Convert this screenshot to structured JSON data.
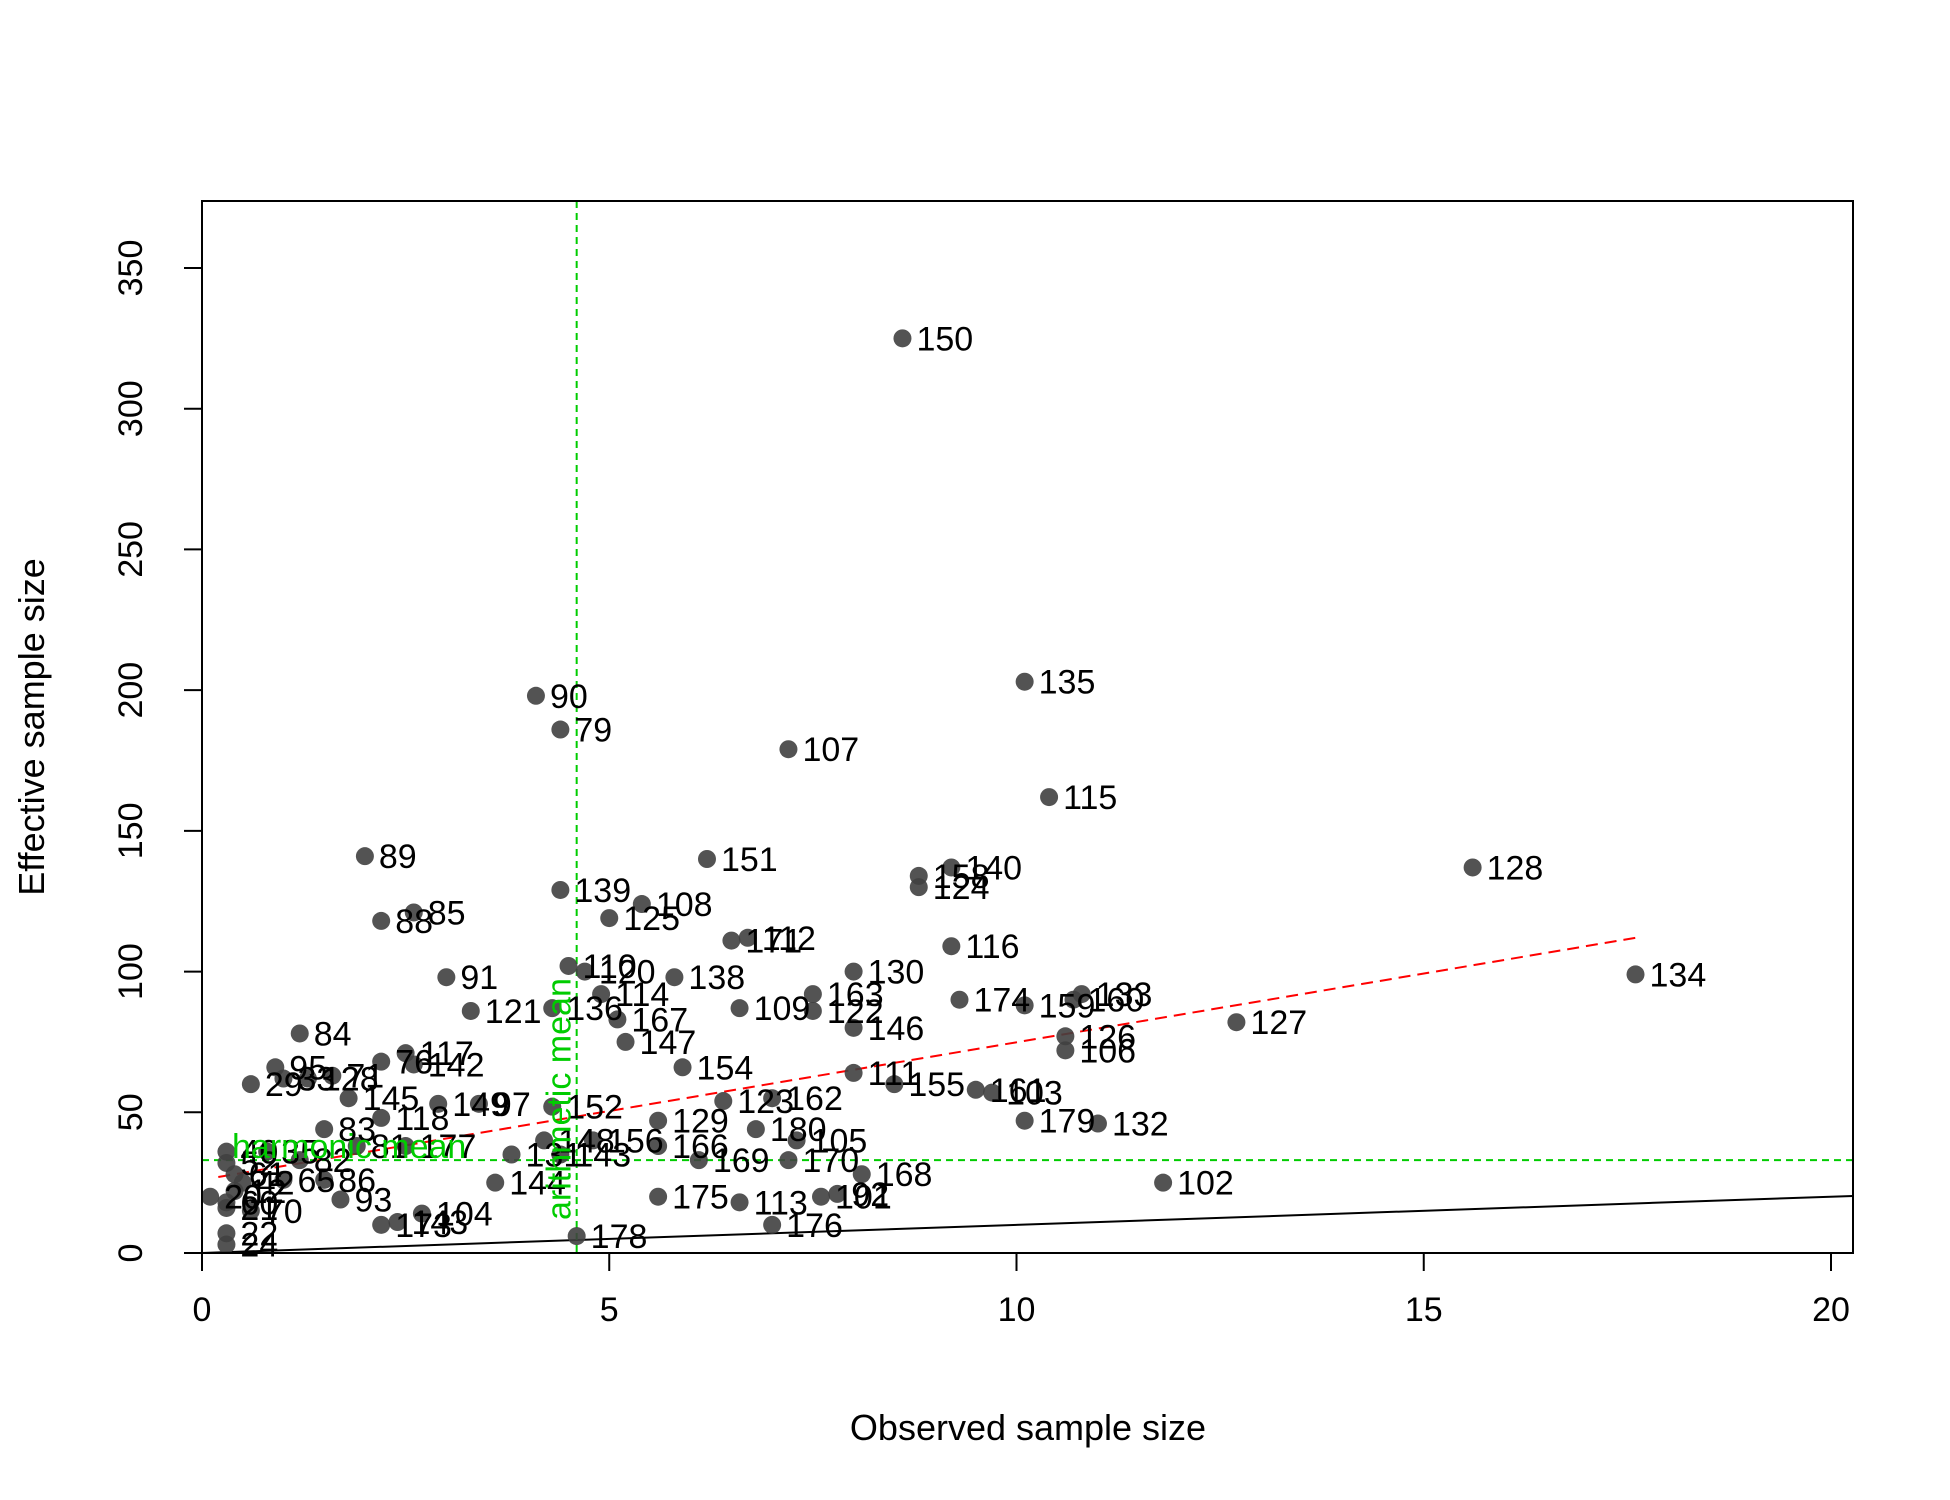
{
  "chart_data": {
    "type": "scatter",
    "title": "",
    "xlabel": "Observed sample size",
    "ylabel": "Effective sample size",
    "xlim": [
      0,
      20.3
    ],
    "ylim": [
      0,
      370
    ],
    "x_ticks": [
      "0",
      "5",
      "10",
      "15",
      "20"
    ],
    "x_tick_values": [
      0,
      5,
      10,
      15,
      20
    ],
    "y_ticks": [
      "0",
      "50",
      "100",
      "150",
      "200",
      "250",
      "300",
      "350"
    ],
    "y_tick_values": [
      0,
      50,
      100,
      150,
      200,
      250,
      300,
      350
    ],
    "grid": false,
    "point_color": "#404040",
    "reference_lines": {
      "identity": {
        "slope": 1,
        "color": "#000000"
      },
      "trend": {
        "x": [
          0.2,
          17.6
        ],
        "y": [
          27,
          112
        ],
        "color": "#ff0000"
      },
      "harmonic_mean": {
        "y": 33,
        "label": "harmonic mean",
        "color": "#00cc00"
      },
      "arithmetic_mean": {
        "x": 4.6,
        "label": "arithmetic mean",
        "color": "#00cc00"
      }
    },
    "points": [
      {
        "id": "150",
        "x": 8.6,
        "y": 325
      },
      {
        "id": "135",
        "x": 10.1,
        "y": 203
      },
      {
        "id": "90",
        "x": 4.1,
        "y": 198
      },
      {
        "id": "79",
        "x": 4.4,
        "y": 186
      },
      {
        "id": "107",
        "x": 7.2,
        "y": 179
      },
      {
        "id": "115",
        "x": 10.4,
        "y": 162
      },
      {
        "id": "89",
        "x": 2.0,
        "y": 141
      },
      {
        "id": "151",
        "x": 6.2,
        "y": 140
      },
      {
        "id": "128",
        "x": 15.6,
        "y": 137
      },
      {
        "id": "140",
        "x": 9.2,
        "y": 137
      },
      {
        "id": "158",
        "x": 8.8,
        "y": 134
      },
      {
        "id": "124",
        "x": 8.8,
        "y": 130
      },
      {
        "id": "139",
        "x": 4.4,
        "y": 129
      },
      {
        "id": "108",
        "x": 5.4,
        "y": 124
      },
      {
        "id": "85",
        "x": 2.6,
        "y": 121
      },
      {
        "id": "125",
        "x": 5.0,
        "y": 119
      },
      {
        "id": "88",
        "x": 2.2,
        "y": 118
      },
      {
        "id": "112",
        "x": 6.7,
        "y": 112
      },
      {
        "id": "171",
        "x": 6.5,
        "y": 111
      },
      {
        "id": "116",
        "x": 9.2,
        "y": 109
      },
      {
        "id": "110",
        "x": 4.5,
        "y": 102
      },
      {
        "id": "120",
        "x": 4.7,
        "y": 100
      },
      {
        "id": "130",
        "x": 8.0,
        "y": 100
      },
      {
        "id": "134",
        "x": 17.6,
        "y": 99
      },
      {
        "id": "138",
        "x": 5.8,
        "y": 98
      },
      {
        "id": "91",
        "x": 3.0,
        "y": 98
      },
      {
        "id": "114",
        "x": 4.9,
        "y": 92
      },
      {
        "id": "163",
        "x": 7.5,
        "y": 92
      },
      {
        "id": "133",
        "x": 10.8,
        "y": 92
      },
      {
        "id": "160",
        "x": 10.7,
        "y": 90
      },
      {
        "id": "174",
        "x": 9.3,
        "y": 90
      },
      {
        "id": "159",
        "x": 10.1,
        "y": 88
      },
      {
        "id": "136",
        "x": 4.3,
        "y": 87
      },
      {
        "id": "109",
        "x": 6.6,
        "y": 87
      },
      {
        "id": "121",
        "x": 3.3,
        "y": 86
      },
      {
        "id": "122",
        "x": 7.5,
        "y": 86
      },
      {
        "id": "167",
        "x": 5.1,
        "y": 83
      },
      {
        "id": "127",
        "x": 12.7,
        "y": 82
      },
      {
        "id": "146",
        "x": 8.0,
        "y": 80
      },
      {
        "id": "84",
        "x": 1.2,
        "y": 78
      },
      {
        "id": "126",
        "x": 10.6,
        "y": 77
      },
      {
        "id": "147",
        "x": 5.2,
        "y": 75
      },
      {
        "id": "106",
        "x": 10.6,
        "y": 72
      },
      {
        "id": "117",
        "x": 2.5,
        "y": 71
      },
      {
        "id": "76",
        "x": 2.2,
        "y": 68
      },
      {
        "id": "142",
        "x": 2.6,
        "y": 67
      },
      {
        "id": "154",
        "x": 5.9,
        "y": 66
      },
      {
        "id": "95",
        "x": 0.9,
        "y": 66
      },
      {
        "id": "111",
        "x": 8.0,
        "y": 64
      },
      {
        "id": "71",
        "x": 1.6,
        "y": 63
      },
      {
        "id": "33",
        "x": 1.0,
        "y": 62
      },
      {
        "id": "128b",
        "x": 1.3,
        "y": 62
      },
      {
        "id": "155",
        "x": 8.5,
        "y": 60
      },
      {
        "id": "29",
        "x": 0.6,
        "y": 60
      },
      {
        "id": "161",
        "x": 9.5,
        "y": 58
      },
      {
        "id": "103",
        "x": 9.7,
        "y": 57
      },
      {
        "id": "145",
        "x": 1.8,
        "y": 55
      },
      {
        "id": "162",
        "x": 7.0,
        "y": 55
      },
      {
        "id": "123",
        "x": 6.4,
        "y": 54
      },
      {
        "id": "149",
        "x": 2.9,
        "y": 53
      },
      {
        "id": "97",
        "x": 3.4,
        "y": 53
      },
      {
        "id": "152",
        "x": 4.3,
        "y": 52
      },
      {
        "id": "118",
        "x": 2.2,
        "y": 48
      },
      {
        "id": "179",
        "x": 10.1,
        "y": 47
      },
      {
        "id": "132",
        "x": 11.0,
        "y": 46
      },
      {
        "id": "129",
        "x": 5.6,
        "y": 47
      },
      {
        "id": "180",
        "x": 6.8,
        "y": 44
      },
      {
        "id": "83",
        "x": 1.5,
        "y": 44
      },
      {
        "id": "156",
        "x": 4.8,
        "y": 40
      },
      {
        "id": "105",
        "x": 7.3,
        "y": 40
      },
      {
        "id": "148",
        "x": 4.2,
        "y": 40
      },
      {
        "id": "166",
        "x": 5.6,
        "y": 38
      },
      {
        "id": "177",
        "x": 2.5,
        "y": 38
      },
      {
        "id": "81",
        "x": 1.9,
        "y": 38
      },
      {
        "id": "131",
        "x": 3.8,
        "y": 35
      },
      {
        "id": "143",
        "x": 4.4,
        "y": 35
      },
      {
        "id": "169",
        "x": 6.1,
        "y": 33
      },
      {
        "id": "170",
        "x": 7.2,
        "y": 33
      },
      {
        "id": "82",
        "x": 1.2,
        "y": 33
      },
      {
        "id": "168",
        "x": 8.1,
        "y": 28
      },
      {
        "id": "102",
        "x": 11.8,
        "y": 25
      },
      {
        "id": "86",
        "x": 1.5,
        "y": 26
      },
      {
        "id": "144",
        "x": 3.6,
        "y": 25
      },
      {
        "id": "92",
        "x": 7.8,
        "y": 21
      },
      {
        "id": "101",
        "x": 7.6,
        "y": 20
      },
      {
        "id": "175",
        "x": 5.6,
        "y": 20
      },
      {
        "id": "113",
        "x": 6.6,
        "y": 18
      },
      {
        "id": "93",
        "x": 1.7,
        "y": 19
      },
      {
        "id": "104",
        "x": 2.7,
        "y": 14
      },
      {
        "id": "143b",
        "x": 2.4,
        "y": 11
      },
      {
        "id": "173",
        "x": 2.2,
        "y": 10
      },
      {
        "id": "176",
        "x": 7.0,
        "y": 10
      },
      {
        "id": "178",
        "x": 4.6,
        "y": 6
      },
      {
        "id": "35",
        "x": 0.8,
        "y": 36
      },
      {
        "id": "65",
        "x": 1.0,
        "y": 26
      },
      {
        "id": "42",
        "x": 0.5,
        "y": 25
      },
      {
        "id": "70",
        "x": 0.6,
        "y": 15
      },
      {
        "id": "12",
        "x": 0.4,
        "y": 22
      },
      {
        "id": "60",
        "x": 0.3,
        "y": 18
      },
      {
        "id": "20",
        "x": 0.1,
        "y": 20
      },
      {
        "id": "21",
        "x": 0.3,
        "y": 16
      },
      {
        "id": "24",
        "x": 0.3,
        "y": 3
      },
      {
        "id": "22",
        "x": 0.3,
        "y": 7
      },
      {
        "id": "52",
        "x": 0.3,
        "y": 32
      },
      {
        "id": "40",
        "x": 0.3,
        "y": 36
      },
      {
        "id": "61",
        "x": 0.4,
        "y": 28
      }
    ],
    "point_labels": {
      "150": "150",
      "135": "135",
      "90": "90",
      "79": "79",
      "107": "107",
      "115": "115",
      "89": "89",
      "151": "151",
      "128": "128",
      "140": "140",
      "158": "158",
      "124": "124",
      "139": "139",
      "108": "108",
      "85": "85",
      "125": "125",
      "88": "88",
      "112": "112",
      "171": "171",
      "116": "116",
      "110": "110",
      "120": "120",
      "130": "130",
      "134": "134",
      "138": "138",
      "91": "91",
      "114": "114",
      "163": "163",
      "133": "133",
      "160": "160",
      "174": "174",
      "159": "159",
      "136": "136",
      "109": "109",
      "121": "121",
      "122": "122",
      "167": "167",
      "127": "127",
      "146": "146",
      "84": "84",
      "126": "126",
      "147": "147",
      "106": "106",
      "117": "117",
      "76": "76",
      "142": "142",
      "154": "154",
      "95": "95",
      "111": "111",
      "71": "71",
      "33": "33",
      "128b": "128",
      "155": "155",
      "29": "29",
      "161": "161",
      "103": "103",
      "145": "145",
      "162": "162",
      "123": "123",
      "149": "149",
      "97": "97",
      "152": "152",
      "118": "118",
      "179": "179",
      "132": "132",
      "129": "129",
      "180": "180",
      "83": "83",
      "156": "156",
      "105": "105",
      "148": "148",
      "166": "166",
      "177": "177",
      "81": "81",
      "131": "131",
      "143": "143",
      "169": "169",
      "170": "170",
      "82": "82",
      "168": "168",
      "102": "102",
      "86": "86",
      "144": "144",
      "92": "92",
      "101": "101",
      "175": "175",
      "113": "113",
      "93": "93",
      "104": "104",
      "143b": "143",
      "173": "173",
      "176": "176",
      "178": "178",
      "35": "35",
      "65": "65",
      "42": "42",
      "70": "70",
      "12": "12",
      "60": "60",
      "20": "20",
      "21": "21",
      "24": "24",
      "22": "22",
      "52": "52",
      "40": "40",
      "61": "61"
    }
  }
}
